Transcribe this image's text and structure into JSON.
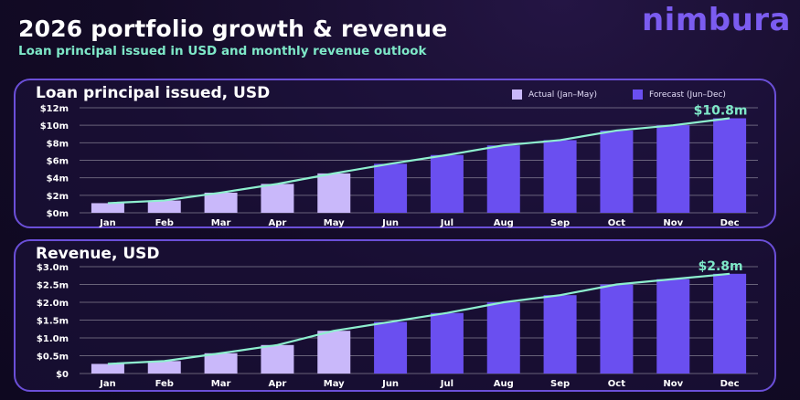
{
  "header": {
    "title": "2026 portfolio growth & revenue",
    "subtitle": "Loan principal issued in USD and monthly revenue outlook",
    "logo": "nimbura"
  },
  "colors": {
    "actual": "#c9b8fa",
    "forecast": "#6a4ff0",
    "trend": "#8ef0cf",
    "panel_border": "#6b4fd8"
  },
  "chart_data": [
    {
      "type": "bar",
      "title": "Loan principal issued, USD",
      "categories": [
        "Jan",
        "Feb",
        "Mar",
        "Apr",
        "May",
        "Jun",
        "Jul",
        "Aug",
        "Sep",
        "Oct",
        "Nov",
        "Dec"
      ],
      "series": [
        {
          "name": "Actual (Jan–May)",
          "values": [
            1.1,
            1.4,
            2.3,
            3.3,
            4.5,
            null,
            null,
            null,
            null,
            null,
            null,
            null
          ]
        },
        {
          "name": "Forecast (Jun–Dec)",
          "values": [
            null,
            null,
            null,
            null,
            null,
            5.6,
            6.6,
            7.7,
            8.3,
            9.4,
            10.0,
            10.8
          ]
        }
      ],
      "trend": [
        1.1,
        1.4,
        2.3,
        3.3,
        4.5,
        5.6,
        6.6,
        7.7,
        8.3,
        9.4,
        10.0,
        10.8
      ],
      "yticks": [
        "$0m",
        "$2m",
        "$4m",
        "$6m",
        "$8m",
        "$10m",
        "$12m"
      ],
      "ylim": [
        0,
        12
      ],
      "callout": "$10.8m",
      "legend_position": "top-right",
      "grid": true
    },
    {
      "type": "bar",
      "title": "Revenue, USD",
      "categories": [
        "Jan",
        "Feb",
        "Mar",
        "Apr",
        "May",
        "Jun",
        "Jul",
        "Aug",
        "Sep",
        "Oct",
        "Nov",
        "Dec"
      ],
      "series": [
        {
          "name": "Actual (Jan–May)",
          "values": [
            0.27,
            0.35,
            0.57,
            0.8,
            1.2,
            null,
            null,
            null,
            null,
            null,
            null,
            null
          ]
        },
        {
          "name": "Forecast (Jun–Dec)",
          "values": [
            null,
            null,
            null,
            null,
            null,
            1.45,
            1.7,
            2.0,
            2.2,
            2.5,
            2.65,
            2.8
          ]
        }
      ],
      "trend": [
        0.27,
        0.35,
        0.57,
        0.8,
        1.2,
        1.45,
        1.7,
        2.0,
        2.2,
        2.5,
        2.65,
        2.8
      ],
      "yticks": [
        "$0",
        "$0.5m",
        "$1.0m",
        "$1.5m",
        "$2.0m",
        "$2.5m",
        "$3.0m"
      ],
      "ylim": [
        0,
        3
      ],
      "callout": "$2.8m",
      "grid": true
    }
  ]
}
